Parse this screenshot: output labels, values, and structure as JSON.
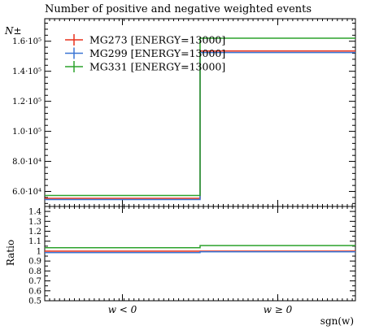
{
  "chart_data": {
    "type": "step-histogram",
    "title": "Number of positive and negative weighted events",
    "xlabel": "sgn(w)",
    "ylabel": "N±",
    "ratio_label": "Ratio",
    "categories": [
      "w < 0",
      "w ≥ 0"
    ],
    "ylim": [
      50000,
      175000
    ],
    "yticks": [
      60000,
      80000,
      100000,
      120000,
      140000,
      160000
    ],
    "ytick_labels": [
      "6.0·10⁴",
      "8.0·10⁴",
      "1.0·10⁵",
      "1.2·10⁵",
      "1.4·10⁵",
      "1.6·10⁵"
    ],
    "ratio_ylim": [
      0.5,
      1.5
    ],
    "ratio_ticks": [
      0.5,
      0.6,
      0.7,
      0.8,
      0.9,
      1,
      1.1,
      1.2,
      1.3,
      1.4
    ],
    "ratio_tick_labels": [
      "0.5",
      "0.6",
      "0.7",
      "0.8",
      "0.9",
      "1",
      "1.1",
      "1.2",
      "1.3",
      "1.4"
    ],
    "series": [
      {
        "name": "MG273 [ENERGY=13000]",
        "color": "#e8301c",
        "values": [
          55400,
          153500
        ]
      },
      {
        "name": "MG299 [ENERGY=13000]",
        "color": "#3a75d4",
        "values": [
          54600,
          152500
        ]
      },
      {
        "name": "MG331 [ENERGY=13000]",
        "color": "#2ca22c",
        "values": [
          57300,
          162000
        ]
      }
    ]
  }
}
